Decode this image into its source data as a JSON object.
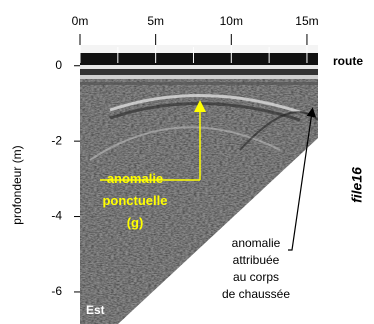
{
  "chart_data": {
    "type": "radargram",
    "y_label": "profondeur (m)",
    "xlim": [
      0,
      15.73
    ],
    "ylim": [
      -6.85,
      0.55
    ],
    "xticks": [
      {
        "value": 0,
        "label": "0m"
      },
      {
        "value": 5,
        "label": "5m"
      },
      {
        "value": 10,
        "label": "10m"
      },
      {
        "value": 15,
        "label": "15m"
      }
    ],
    "yticks": [
      0,
      -2,
      -4,
      -6
    ],
    "annotations": {
      "road": "route",
      "file": "file16",
      "side": "Est",
      "point_anomaly": [
        "anomalie",
        "ponctuelle",
        "(g)"
      ],
      "body_anomaly": [
        "anomalie",
        "attribuée",
        "au corps",
        "de chaussée"
      ]
    }
  }
}
